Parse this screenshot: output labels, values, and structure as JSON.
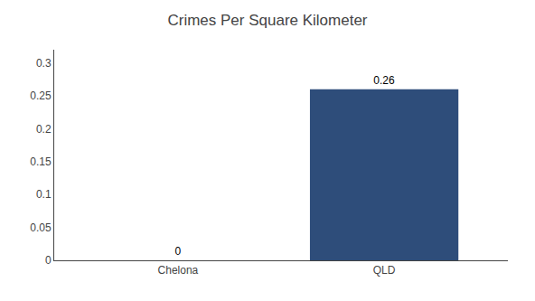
{
  "chart_data": {
    "type": "bar",
    "title": "Crimes Per Square Kilometer",
    "categories": [
      "Chelona",
      "QLD"
    ],
    "values": [
      0,
      0.26
    ],
    "colors": [
      "#3d6591",
      "#2e4d7a"
    ],
    "ylim": [
      0,
      0.32
    ],
    "yticks": [
      0,
      0.05,
      0.1,
      0.15,
      0.2,
      0.25,
      0.3
    ],
    "grid": false,
    "data_labels": true
  }
}
